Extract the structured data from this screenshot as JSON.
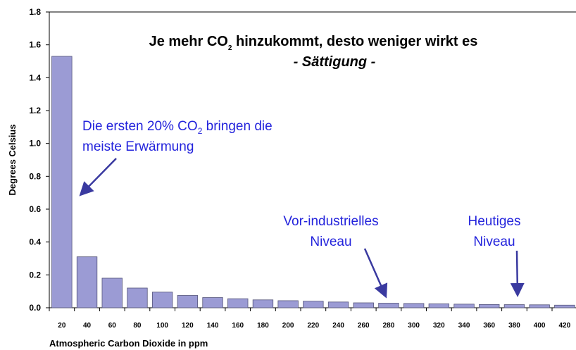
{
  "chart_data": {
    "type": "bar",
    "title": {
      "parts": [
        "Je mehr CO",
        "2",
        " hinzukommt, desto weniger wirkt es"
      ]
    },
    "subtitle": "- Sättigung -",
    "y_label": "Degrees Celsius",
    "x_label": "Atmospheric Carbon Dioxide in ppm",
    "categories": [
      "20",
      "40",
      "60",
      "80",
      "100",
      "120",
      "140",
      "160",
      "180",
      "200",
      "220",
      "240",
      "260",
      "280",
      "300",
      "320",
      "340",
      "360",
      "380",
      "400",
      "420"
    ],
    "values": [
      1.53,
      0.31,
      0.18,
      0.12,
      0.095,
      0.075,
      0.062,
      0.055,
      0.048,
      0.043,
      0.04,
      0.035,
      0.03,
      0.028,
      0.026,
      0.024,
      0.022,
      0.02,
      0.019,
      0.018,
      0.016
    ],
    "color": "#9b9bd4",
    "ylim": [
      0,
      1.8
    ],
    "yticks": [
      {
        "value": 0,
        "label": "0.0"
      },
      0.2,
      0.4,
      0.6,
      0.8,
      {
        "value": 1,
        "label": "1.0"
      },
      1.2,
      1.4,
      1.6,
      1.8
    ],
    "annotations": [
      {
        "lines": [
          [
            "Die ersten 20% CO",
            "2",
            " bringen die"
          ],
          [
            "meiste Erwärmung"
          ]
        ]
      },
      {
        "lines": [
          [
            "Vor-industrielles"
          ],
          [
            "Niveau"
          ]
        ]
      },
      {
        "lines": [
          [
            "Heutiges"
          ],
          [
            "Niveau"
          ]
        ]
      }
    ]
  }
}
